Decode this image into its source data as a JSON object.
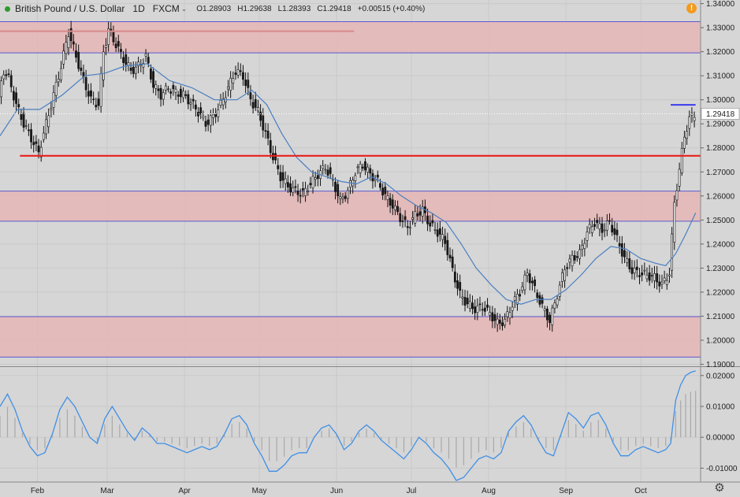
{
  "header": {
    "symbol": "British Pound / U.S. Dollar",
    "timeframe": "1D",
    "exchange": "FXCM",
    "open": "O1.28903",
    "high": "H1.29638",
    "low": "L1.28393",
    "close": "C1.29418",
    "change": "+0.00515 (+0.40%)"
  },
  "colors": {
    "background": "#d6d6d6",
    "bull": "#3cb043",
    "bear": "#1a1a1a",
    "zone": "#e6b6b6",
    "support_line": "#e8201a",
    "ma_line": "#4a7fc1",
    "oscillator": "#3f8fe6"
  },
  "chart_data": [
    {
      "type": "line",
      "price_axis_labels": [
        "1.34000",
        "1.33000",
        "1.32000",
        "1.31000",
        "1.30000",
        "1.29000",
        "1.28000",
        "1.27000",
        "1.26000",
        "1.25000",
        "1.24000",
        "1.23000",
        "1.22000",
        "1.21000",
        "1.20000",
        "1.19000"
      ],
      "ylim": [
        1.1895,
        1.3415
      ],
      "last_price_label": "1.29418",
      "last_price": 1.29418,
      "x_tick_labels": [
        {
          "label": "Feb",
          "day": 23
        },
        {
          "label": "Mar",
          "day": 51
        },
        {
          "label": "Apr",
          "day": 82
        },
        {
          "label": "May",
          "day": 112
        },
        {
          "label": "Jun",
          "day": 143
        },
        {
          "label": "Jul",
          "day": 173
        },
        {
          "label": "Aug",
          "day": 204
        },
        {
          "label": "Sep",
          "day": 235
        },
        {
          "label": "Oct",
          "day": 265
        }
      ],
      "xlim": [
        8,
        289
      ],
      "zones": [
        {
          "low": 1.3195,
          "high": 1.3325
        },
        {
          "low": 1.2495,
          "high": 1.262
        },
        {
          "low": 1.193,
          "high": 1.2098
        }
      ],
      "horizontal_lines": [
        {
          "price": 1.2767,
          "from_day": 16,
          "to_day": 289,
          "color": "#e8201a"
        },
        {
          "price": 1.2979,
          "from_day": 277,
          "to_day": 287,
          "color": "#3a3af0"
        },
        {
          "price": 1.3285,
          "from_day": 8,
          "to_day": 150,
          "color": "#d88a8a"
        }
      ],
      "price_path": [
        [
          8,
          1.302
        ],
        [
          10,
          1.312
        ],
        [
          12,
          1.309
        ],
        [
          15,
          1.298
        ],
        [
          18,
          1.29
        ],
        [
          21,
          1.284
        ],
        [
          24,
          1.278
        ],
        [
          27,
          1.29
        ],
        [
          30,
          1.302
        ],
        [
          33,
          1.314
        ],
        [
          36,
          1.328
        ],
        [
          39,
          1.318
        ],
        [
          42,
          1.308
        ],
        [
          45,
          1.3
        ],
        [
          48,
          1.298
        ],
        [
          50,
          1.32
        ],
        [
          52,
          1.329
        ],
        [
          55,
          1.323
        ],
        [
          58,
          1.317
        ],
        [
          61,
          1.312
        ],
        [
          64,
          1.314
        ],
        [
          67,
          1.318
        ],
        [
          70,
          1.306
        ],
        [
          73,
          1.302
        ],
        [
          76,
          1.305
        ],
        [
          79,
          1.303
        ],
        [
          82,
          1.302
        ],
        [
          85,
          1.299
        ],
        [
          88,
          1.295
        ],
        [
          91,
          1.29
        ],
        [
          94,
          1.293
        ],
        [
          97,
          1.298
        ],
        [
          100,
          1.305
        ],
        [
          103,
          1.312
        ],
        [
          106,
          1.31
        ],
        [
          109,
          1.3
        ],
        [
          112,
          1.295
        ],
        [
          115,
          1.286
        ],
        [
          118,
          1.276
        ],
        [
          121,
          1.268
        ],
        [
          124,
          1.264
        ],
        [
          127,
          1.262
        ],
        [
          130,
          1.261
        ],
        [
          133,
          1.265
        ],
        [
          136,
          1.269
        ],
        [
          139,
          1.272
        ],
        [
          142,
          1.266
        ],
        [
          145,
          1.258
        ],
        [
          148,
          1.262
        ],
        [
          151,
          1.27
        ],
        [
          154,
          1.273
        ],
        [
          157,
          1.269
        ],
        [
          160,
          1.266
        ],
        [
          163,
          1.26
        ],
        [
          166,
          1.256
        ],
        [
          169,
          1.251
        ],
        [
          172,
          1.247
        ],
        [
          175,
          1.252
        ],
        [
          178,
          1.254
        ],
        [
          181,
          1.248
        ],
        [
          184,
          1.245
        ],
        [
          187,
          1.241
        ],
        [
          190,
          1.229
        ],
        [
          193,
          1.219
        ],
        [
          196,
          1.215
        ],
        [
          199,
          1.213
        ],
        [
          202,
          1.214
        ],
        [
          205,
          1.211
        ],
        [
          208,
          1.207
        ],
        [
          211,
          1.208
        ],
        [
          214,
          1.215
        ],
        [
          217,
          1.22
        ],
        [
          220,
          1.228
        ],
        [
          223,
          1.221
        ],
        [
          226,
          1.214
        ],
        [
          229,
          1.208
        ],
        [
          232,
          1.219
        ],
        [
          235,
          1.23
        ],
        [
          238,
          1.234
        ],
        [
          241,
          1.236
        ],
        [
          244,
          1.245
        ],
        [
          247,
          1.249
        ],
        [
          250,
          1.246
        ],
        [
          253,
          1.249
        ],
        [
          256,
          1.242
        ],
        [
          259,
          1.234
        ],
        [
          262,
          1.229
        ],
        [
          265,
          1.228
        ],
        [
          268,
          1.227
        ],
        [
          271,
          1.226
        ],
        [
          274,
          1.223
        ],
        [
          277,
          1.228
        ],
        [
          279,
          1.257
        ],
        [
          281,
          1.271
        ],
        [
          283,
          1.285
        ],
        [
          285,
          1.292
        ],
        [
          287,
          1.294
        ]
      ],
      "ma_path": [
        [
          8,
          1.285
        ],
        [
          15,
          1.296
        ],
        [
          24,
          1.296
        ],
        [
          33,
          1.302
        ],
        [
          42,
          1.31
        ],
        [
          50,
          1.311
        ],
        [
          58,
          1.314
        ],
        [
          67,
          1.315
        ],
        [
          76,
          1.308
        ],
        [
          85,
          1.305
        ],
        [
          94,
          1.3
        ],
        [
          103,
          1.3
        ],
        [
          109,
          1.304
        ],
        [
          115,
          1.298
        ],
        [
          121,
          1.286
        ],
        [
          127,
          1.276
        ],
        [
          133,
          1.27
        ],
        [
          139,
          1.268
        ],
        [
          145,
          1.266
        ],
        [
          151,
          1.265
        ],
        [
          157,
          1.268
        ],
        [
          163,
          1.265
        ],
        [
          169,
          1.26
        ],
        [
          175,
          1.256
        ],
        [
          181,
          1.253
        ],
        [
          187,
          1.249
        ],
        [
          193,
          1.24
        ],
        [
          199,
          1.23
        ],
        [
          205,
          1.223
        ],
        [
          211,
          1.217
        ],
        [
          217,
          1.215
        ],
        [
          223,
          1.217
        ],
        [
          229,
          1.217
        ],
        [
          235,
          1.221
        ],
        [
          241,
          1.227
        ],
        [
          247,
          1.234
        ],
        [
          253,
          1.239
        ],
        [
          259,
          1.238
        ],
        [
          265,
          1.234
        ],
        [
          271,
          1.232
        ],
        [
          275,
          1.231
        ],
        [
          279,
          1.236
        ],
        [
          283,
          1.244
        ],
        [
          287,
          1.253
        ]
      ]
    },
    {
      "type": "area",
      "axis_labels": [
        "0.02000",
        "0.01000",
        "0.00000",
        "-0.01000"
      ],
      "ylim": [
        -0.0145,
        0.0225
      ],
      "oscillator_path": [
        [
          8,
          0.01
        ],
        [
          11,
          0.014
        ],
        [
          14,
          0.009
        ],
        [
          17,
          0.002
        ],
        [
          20,
          -0.003
        ],
        [
          23,
          -0.006
        ],
        [
          26,
          -0.005
        ],
        [
          29,
          0.001
        ],
        [
          32,
          0.009
        ],
        [
          35,
          0.013
        ],
        [
          38,
          0.01
        ],
        [
          41,
          0.005
        ],
        [
          44,
          0.0
        ],
        [
          47,
          -0.002
        ],
        [
          50,
          0.006
        ],
        [
          53,
          0.01
        ],
        [
          56,
          0.006
        ],
        [
          59,
          0.002
        ],
        [
          62,
          -0.001
        ],
        [
          65,
          0.003
        ],
        [
          68,
          0.001
        ],
        [
          71,
          -0.002
        ],
        [
          74,
          -0.002
        ],
        [
          77,
          -0.003
        ],
        [
          80,
          -0.004
        ],
        [
          83,
          -0.005
        ],
        [
          86,
          -0.004
        ],
        [
          89,
          -0.003
        ],
        [
          92,
          -0.004
        ],
        [
          95,
          -0.003
        ],
        [
          98,
          0.001
        ],
        [
          101,
          0.006
        ],
        [
          104,
          0.007
        ],
        [
          107,
          0.004
        ],
        [
          110,
          -0.002
        ],
        [
          113,
          -0.006
        ],
        [
          116,
          -0.011
        ],
        [
          119,
          -0.011
        ],
        [
          122,
          -0.009
        ],
        [
          125,
          -0.006
        ],
        [
          128,
          -0.005
        ],
        [
          131,
          -0.005
        ],
        [
          134,
          0.0
        ],
        [
          137,
          0.003
        ],
        [
          140,
          0.004
        ],
        [
          143,
          0.001
        ],
        [
          146,
          -0.004
        ],
        [
          149,
          -0.002
        ],
        [
          152,
          0.002
        ],
        [
          155,
          0.004
        ],
        [
          158,
          0.002
        ],
        [
          161,
          -0.001
        ],
        [
          164,
          -0.003
        ],
        [
          167,
          -0.005
        ],
        [
          170,
          -0.007
        ],
        [
          173,
          -0.004
        ],
        [
          176,
          0.0
        ],
        [
          179,
          -0.002
        ],
        [
          182,
          -0.005
        ],
        [
          185,
          -0.007
        ],
        [
          188,
          -0.01
        ],
        [
          191,
          -0.014
        ],
        [
          194,
          -0.013
        ],
        [
          197,
          -0.01
        ],
        [
          200,
          -0.007
        ],
        [
          203,
          -0.006
        ],
        [
          206,
          -0.007
        ],
        [
          209,
          -0.005
        ],
        [
          212,
          0.002
        ],
        [
          215,
          0.005
        ],
        [
          218,
          0.007
        ],
        [
          221,
          0.004
        ],
        [
          224,
          -0.001
        ],
        [
          227,
          -0.005
        ],
        [
          230,
          -0.006
        ],
        [
          233,
          0.001
        ],
        [
          236,
          0.008
        ],
        [
          239,
          0.006
        ],
        [
          242,
          0.003
        ],
        [
          245,
          0.007
        ],
        [
          248,
          0.008
        ],
        [
          251,
          0.004
        ],
        [
          254,
          -0.002
        ],
        [
          257,
          -0.006
        ],
        [
          260,
          -0.006
        ],
        [
          263,
          -0.004
        ],
        [
          266,
          -0.003
        ],
        [
          269,
          -0.004
        ],
        [
          272,
          -0.005
        ],
        [
          275,
          -0.004
        ],
        [
          277,
          -0.002
        ],
        [
          279,
          0.012
        ],
        [
          281,
          0.017
        ],
        [
          283,
          0.02
        ],
        [
          285,
          0.021
        ],
        [
          287,
          0.0215
        ]
      ]
    }
  ]
}
